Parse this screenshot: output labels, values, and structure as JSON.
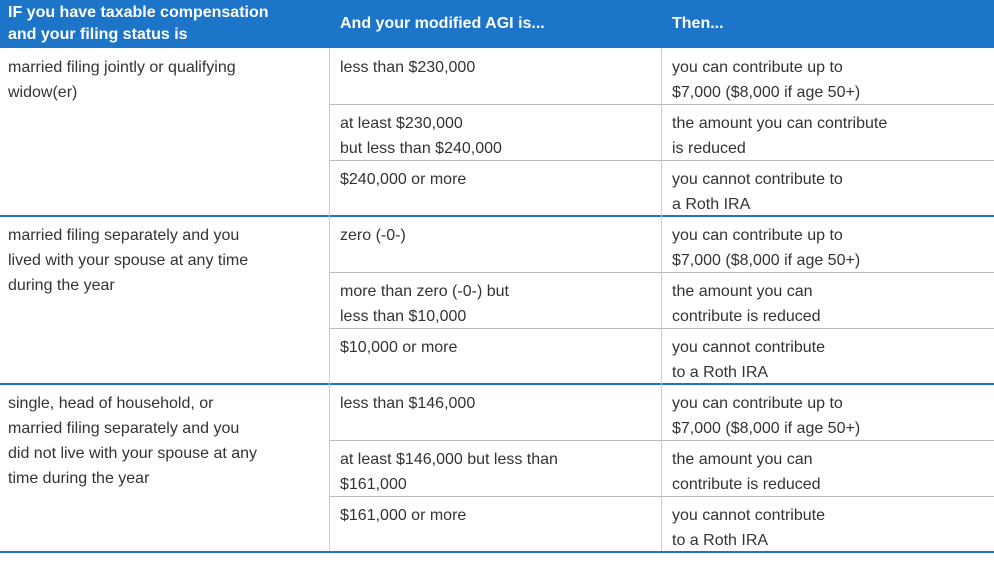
{
  "header": [
    [
      "IF you have taxable compensation",
      "and your filing status is"
    ],
    [
      "And your modified AGI is..."
    ],
    [
      "Then..."
    ]
  ],
  "groups": [
    {
      "status": [
        "married filing jointly or qualifying",
        "widow(er)"
      ],
      "rows": [
        [
          [
            "less than $230,000"
          ],
          [
            "you can contribute up to",
            "$7,000 ($8,000 if age 50+)"
          ]
        ],
        [
          [
            "at least $230,000",
            "but less than $240,000"
          ],
          [
            "the amount you can contribute",
            "is reduced"
          ]
        ],
        [
          [
            "$240,000 or more"
          ],
          [
            "you cannot contribute to",
            "a Roth IRA"
          ]
        ]
      ]
    },
    {
      "status": [
        "married filing separately and you",
        "lived with your spouse at any time",
        "during the year"
      ],
      "rows": [
        [
          [
            "zero (-0-)"
          ],
          [
            "you can contribute up to",
            "$7,000 ($8,000 if age 50+)"
          ]
        ],
        [
          [
            "more than zero (-0-) but",
            "less than $10,000"
          ],
          [
            "the amount you can",
            "contribute is reduced"
          ]
        ],
        [
          [
            "$10,000 or more"
          ],
          [
            "you cannot contribute",
            "to a Roth IRA"
          ]
        ]
      ]
    },
    {
      "status": [
        "single, head of household, or",
        "married filing separately and you",
        "did not live with your spouse at any",
        "time during the year"
      ],
      "rows": [
        [
          [
            "less than $146,000"
          ],
          [
            "you can contribute up to",
            "$7,000 ($8,000 if age 50+)"
          ]
        ],
        [
          [
            "at least $146,000 but less than",
            "$161,000"
          ],
          [
            "the amount you can",
            "contribute is reduced"
          ]
        ],
        [
          [
            "$161,000 or more"
          ],
          [
            "you cannot contribute",
            "to a Roth IRA"
          ]
        ]
      ]
    }
  ]
}
